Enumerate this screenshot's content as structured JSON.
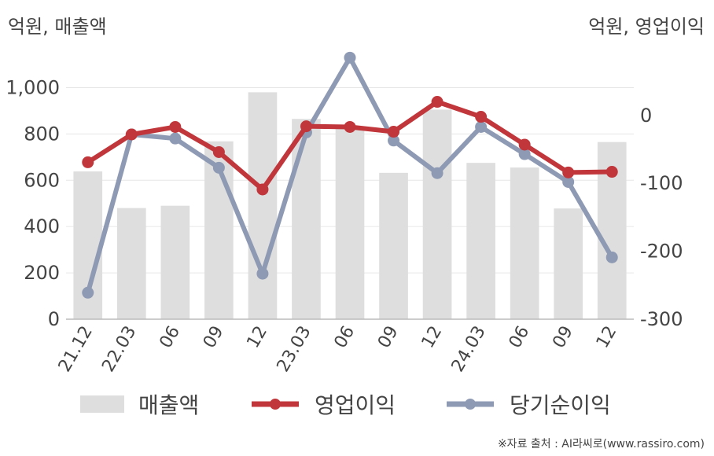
{
  "units": {
    "left": "억원, 매출액",
    "right": "억원, 영업이익"
  },
  "source": "※자료 출처 : AI라씨로(www.rassiro.com)",
  "legend": [
    "매출액",
    "영업이익",
    "당기순이익"
  ],
  "colors": {
    "bar": "#dedede",
    "operating": "#c0363a",
    "net": "#8e9ab3",
    "grid": "#e6e6e6"
  },
  "chart_data": {
    "type": "bar+line",
    "categories": [
      "21.12",
      "22.03",
      "06",
      "09",
      "12",
      "23.03",
      "06",
      "09",
      "12",
      "24.03",
      "06",
      "09",
      "12"
    ],
    "left_axis": {
      "ticks": [
        "0",
        "200",
        "400",
        "600",
        "800",
        "1,000"
      ],
      "ylim": [
        0,
        1100
      ]
    },
    "right_axis": {
      "ticks": [
        "0",
        "-100",
        "-200",
        "-300"
      ],
      "ylim": [
        -300,
        75
      ]
    },
    "series": [
      {
        "name": "매출액",
        "type": "bar",
        "axis": "left",
        "values": [
          638,
          480,
          490,
          768,
          980,
          865,
          830,
          632,
          905,
          675,
          655,
          478,
          765
        ]
      },
      {
        "name": "영업이익",
        "type": "line",
        "axis": "right",
        "values": [
          -69,
          -28,
          -17,
          -54,
          -109,
          -16,
          -17,
          -24,
          20,
          -2,
          -43,
          -84,
          -83
        ]
      },
      {
        "name": "당기순이익",
        "type": "line",
        "axis": "right",
        "values": [
          -261,
          -28,
          -34,
          -77,
          -233,
          -25,
          85,
          -37,
          -85,
          -17,
          -57,
          -98,
          -209
        ]
      }
    ]
  }
}
